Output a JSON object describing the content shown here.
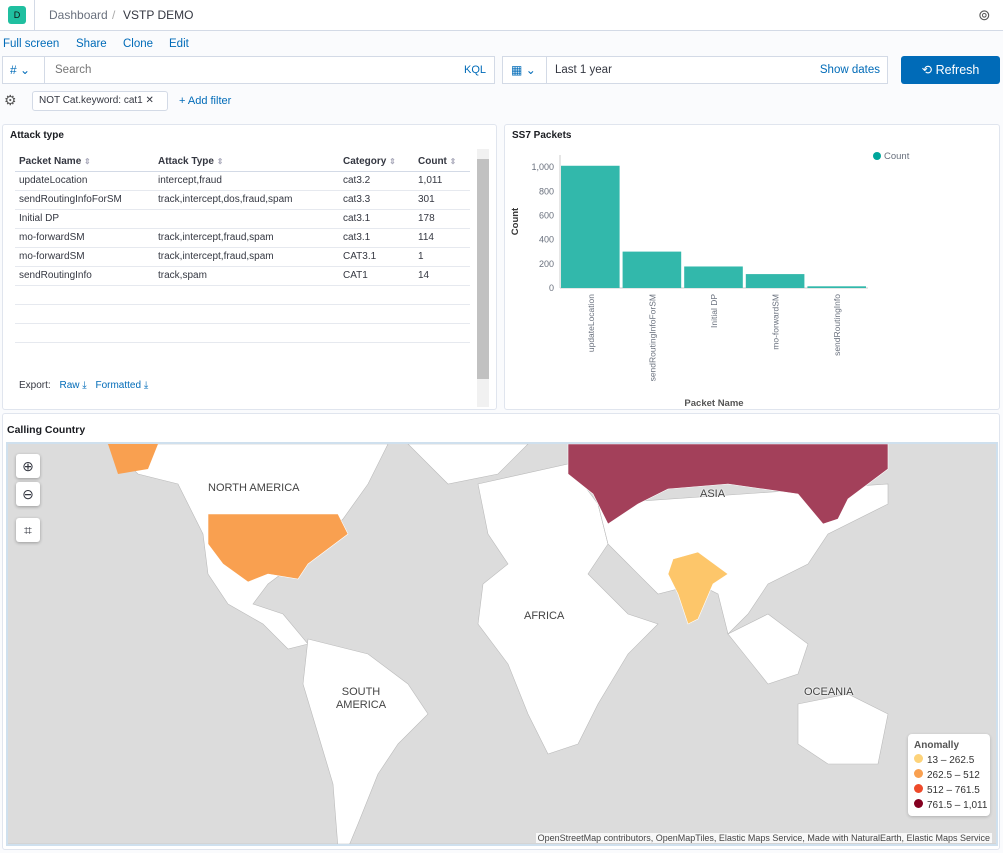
{
  "header": {
    "avatar": "D",
    "breadcrumb_root": "Dashboard",
    "breadcrumb_current": "VSTP DEMO"
  },
  "toolbar": {
    "full_screen": "Full screen",
    "share": "Share",
    "clone": "Clone",
    "edit": "Edit"
  },
  "query": {
    "type_symbol": "#",
    "placeholder": "Search",
    "language": "KQL",
    "date_range": "Last 1 year",
    "show_dates": "Show dates",
    "refresh": "Refresh"
  },
  "filters": {
    "pill": "NOT Cat.keyword: cat1",
    "add_filter": "+ Add filter"
  },
  "table_panel": {
    "title": "Attack type",
    "columns": [
      "Packet Name",
      "Attack Type",
      "Category",
      "Count"
    ],
    "rows": [
      [
        "updateLocation",
        "intercept,fraud",
        "cat3.2",
        "1,011"
      ],
      [
        "sendRoutingInfoForSM",
        "track,intercept,dos,fraud,spam",
        "cat3.3",
        "301"
      ],
      [
        "Initial DP",
        "",
        "cat3.1",
        "178"
      ],
      [
        "mo-forwardSM",
        "track,intercept,fraud,spam",
        "cat3.1",
        "114"
      ],
      [
        "mo-forwardSM",
        "track,intercept,fraud,spam",
        "CAT3.1",
        "1"
      ],
      [
        "sendRoutingInfo",
        "track,spam",
        "CAT1",
        "14"
      ]
    ],
    "export_label": "Export:",
    "export_raw": "Raw",
    "export_formatted": "Formatted"
  },
  "chart_data": {
    "type": "bar",
    "title": "SS7 Packets",
    "xlabel": "Packet Name",
    "ylabel": "Count",
    "categories": [
      "updateLocation",
      "sendRoutingInfoForSM",
      "Initial DP",
      "mo-forwardSM",
      "sendRoutingInfo"
    ],
    "values": [
      1011,
      301,
      178,
      115,
      14
    ],
    "ylim": [
      0,
      1100
    ],
    "yticks": [
      "0",
      "200",
      "400",
      "600",
      "800",
      "1,000"
    ],
    "legend": "Count",
    "legend_position": "top-right",
    "color": "#32b8ab",
    "grid": false
  },
  "map_panel": {
    "title": "Calling Country",
    "labels": {
      "na": "NORTH AMERICA",
      "sa": "SOUTH AMERICA",
      "africa": "AFRICA",
      "asia": "ASIA",
      "oceania": "OCEANIA"
    },
    "legend_title": "Anomally",
    "legend": [
      {
        "range": "13 – 262.5",
        "color": "#fdd37a"
      },
      {
        "range": "262.5 – 512",
        "color": "#f9a050"
      },
      {
        "range": "512 – 761.5",
        "color": "#ee4a2a"
      },
      {
        "range": "761.5 – 1,011",
        "color": "#850020"
      }
    ],
    "attribution": "OpenStreetMap contributors, OpenMapTiles, Elastic Maps Service, Made with NaturalEarth, Elastic Maps Service"
  }
}
